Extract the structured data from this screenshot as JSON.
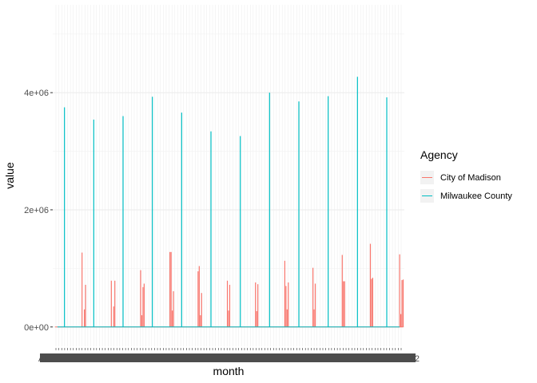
{
  "chart_data": {
    "type": "line",
    "xlabel": "month",
    "ylabel": "value",
    "legend_title": "Agency",
    "legend_position": "right",
    "grid": true,
    "x_tick_count": 120,
    "x_tick_labels_visible": [
      "AI",
      "52"
    ],
    "ylim": [
      0,
      5500000
    ],
    "yticks": [
      {
        "value": 0,
        "label": "0e+00"
      },
      {
        "value": 2000000,
        "label": "2e+06"
      },
      {
        "value": 4000000,
        "label": "4e+06"
      }
    ],
    "series": [
      {
        "name": "City of Madison",
        "color": "#F8766D",
        "spikes": [
          {
            "x": 25,
            "value": 1270000
          },
          {
            "x": 27,
            "value": 300000
          },
          {
            "x": 28,
            "value": 720000
          },
          {
            "x": 50,
            "value": 790000
          },
          {
            "x": 52,
            "value": 350000
          },
          {
            "x": 53,
            "value": 790000
          },
          {
            "x": 75,
            "value": 970000
          },
          {
            "x": 76,
            "value": 200000
          },
          {
            "x": 77,
            "value": 680000
          },
          {
            "x": 78,
            "value": 740000
          },
          {
            "x": 100,
            "value": 1280000
          },
          {
            "x": 101,
            "value": 1280000
          },
          {
            "x": 102,
            "value": 280000
          },
          {
            "x": 103,
            "value": 610000
          },
          {
            "x": 124,
            "value": 950000
          },
          {
            "x": 125,
            "value": 1040000
          },
          {
            "x": 126,
            "value": 200000
          },
          {
            "x": 127,
            "value": 580000
          },
          {
            "x": 149,
            "value": 790000
          },
          {
            "x": 150,
            "value": 280000
          },
          {
            "x": 151,
            "value": 720000
          },
          {
            "x": 173,
            "value": 760000
          },
          {
            "x": 174,
            "value": 270000
          },
          {
            "x": 175,
            "value": 730000
          },
          {
            "x": 198,
            "value": 1130000
          },
          {
            "x": 199,
            "value": 700000
          },
          {
            "x": 200,
            "value": 300000
          },
          {
            "x": 201,
            "value": 760000
          },
          {
            "x": 222,
            "value": 1010000
          },
          {
            "x": 223,
            "value": 300000
          },
          {
            "x": 224,
            "value": 740000
          },
          {
            "x": 247,
            "value": 1230000
          },
          {
            "x": 248,
            "value": 780000
          },
          {
            "x": 249,
            "value": 780000
          },
          {
            "x": 271,
            "value": 1420000
          },
          {
            "x": 272,
            "value": 820000
          },
          {
            "x": 273,
            "value": 840000
          },
          {
            "x": 296,
            "value": 1240000
          },
          {
            "x": 297,
            "value": 220000
          },
          {
            "x": 298,
            "value": 800000
          },
          {
            "x": 299,
            "value": 810000
          }
        ]
      },
      {
        "name": "Milwaukee County",
        "color": "#00BFC4",
        "spikes": [
          {
            "x": 10,
            "value": 3750000
          },
          {
            "x": 35,
            "value": 3540000
          },
          {
            "x": 60,
            "value": 3600000
          },
          {
            "x": 85,
            "value": 3930000
          },
          {
            "x": 110,
            "value": 3660000
          },
          {
            "x": 135,
            "value": 3340000
          },
          {
            "x": 160,
            "value": 3260000
          },
          {
            "x": 185,
            "value": 4000000
          },
          {
            "x": 210,
            "value": 3850000
          },
          {
            "x": 235,
            "value": 3940000
          },
          {
            "x": 260,
            "value": 4270000
          },
          {
            "x": 285,
            "value": 3920000
          }
        ]
      }
    ],
    "x_range": [
      0,
      300
    ]
  }
}
